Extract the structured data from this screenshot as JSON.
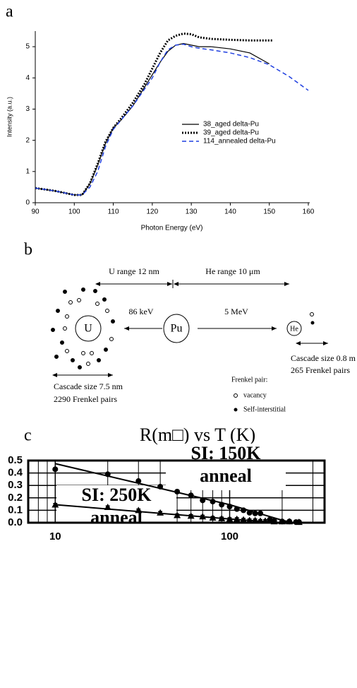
{
  "chart_data": [
    {
      "type": "line",
      "panel_label": "a",
      "xlabel": "Photon Energy (eV)",
      "ylabel": "Intensity (a.u.)",
      "xlim": [
        90,
        160
      ],
      "ylim": [
        0,
        5.5
      ],
      "xticks": [
        90,
        100,
        110,
        120,
        130,
        140,
        150,
        160
      ],
      "yticks": [
        0,
        1,
        2,
        3,
        4,
        5
      ],
      "legend": "center right",
      "series": [
        {
          "name": "38_aged delta-Pu",
          "color": "#000000",
          "style": "solid",
          "x": [
            90,
            95,
            100,
            102,
            104,
            106,
            108,
            110,
            112,
            115,
            118,
            120,
            122,
            124,
            126,
            128,
            130,
            132,
            135,
            140,
            145,
            150
          ],
          "values": [
            0.47,
            0.38,
            0.25,
            0.25,
            0.6,
            1.2,
            1.9,
            2.4,
            2.65,
            3.1,
            3.7,
            4.1,
            4.5,
            4.85,
            5.05,
            5.1,
            5.05,
            5.0,
            5.0,
            4.93,
            4.8,
            4.45
          ]
        },
        {
          "name": "39_aged delta-Pu",
          "color": "#000000",
          "style": "dotted",
          "x": [
            90,
            95,
            100,
            102,
            104,
            106,
            108,
            110,
            112,
            115,
            118,
            120,
            122,
            124,
            126,
            128,
            130,
            132,
            135,
            140,
            145,
            151
          ],
          "values": [
            0.47,
            0.38,
            0.25,
            0.25,
            0.62,
            1.25,
            1.95,
            2.4,
            2.7,
            3.2,
            3.8,
            4.3,
            4.8,
            5.2,
            5.35,
            5.42,
            5.4,
            5.3,
            5.25,
            5.22,
            5.2,
            5.2
          ]
        },
        {
          "name": "114_annealed delta-Pu",
          "color": "#1f3fe0",
          "style": "dashed",
          "x": [
            90,
            95,
            100,
            102,
            104,
            106,
            108,
            110,
            112,
            115,
            120,
            122,
            124,
            126,
            128,
            130,
            132,
            135,
            140,
            145,
            150,
            155,
            160
          ],
          "values": [
            0.47,
            0.38,
            0.25,
            0.25,
            0.5,
            1.0,
            1.8,
            2.35,
            2.65,
            3.1,
            4.0,
            4.5,
            4.9,
            5.05,
            5.08,
            5.0,
            4.95,
            4.9,
            4.8,
            4.65,
            4.42,
            4.05,
            3.6
          ]
        }
      ]
    },
    {
      "type": "scatter",
      "panel_label": "c",
      "title": "R(m□) vs T (K)",
      "log_x": true,
      "grid": true,
      "xlim": [
        7,
        350
      ],
      "ylim": [
        0,
        0.5
      ],
      "xticks": [
        10,
        100
      ],
      "yticks": [
        {
          "value": 0,
          "label": "0.0"
        },
        0.1,
        0.2,
        0.3,
        0.4,
        0.5
      ],
      "series": [
        {
          "marker": "circle",
          "color": "#000000",
          "x": [
            10,
            20,
            30,
            40,
            50,
            60,
            70,
            80,
            90,
            100,
            110,
            120,
            130,
            140,
            150,
            170,
            180,
            200,
            220,
            240,
            250
          ],
          "values": [
            0.43,
            0.39,
            0.335,
            0.29,
            0.25,
            0.22,
            0.18,
            0.17,
            0.145,
            0.13,
            0.11,
            0.1,
            0.08,
            0.075,
            0.075,
            0.025,
            0.015,
            0.01,
            0.01,
            0.005,
            0.005
          ],
          "errors": [
            0.01,
            0.01,
            0.01,
            0.01,
            0.01,
            0.01,
            0.01,
            0.01,
            0.01,
            0.01,
            0.01,
            0.01,
            0.01,
            0.01,
            0.01,
            0.01,
            0.01,
            0.01,
            0.01,
            0.01,
            0.01
          ]
        },
        {
          "marker": "triangle",
          "color": "#000000",
          "x": [
            10,
            20,
            30,
            40,
            50,
            60,
            70,
            80,
            90,
            100,
            110,
            120,
            130,
            140,
            150,
            160,
            170,
            180,
            200,
            220,
            250
          ],
          "values": [
            0.145,
            0.125,
            0.1,
            0.08,
            0.06,
            0.055,
            0.05,
            0.04,
            0.035,
            0.03,
            0.03,
            0.025,
            0.02,
            0.02,
            0.015,
            0.015,
            0.015,
            0.01,
            0.01,
            0.01,
            0.005
          ],
          "errors": [
            0.01,
            0.01,
            0.01,
            0.01,
            0.01,
            0.01,
            0.01,
            0.01,
            0.01,
            0.01,
            0.01,
            0.01,
            0.01,
            0.01,
            0.01,
            0.01,
            0.01,
            0.01,
            0.01,
            0.01,
            0.01
          ]
        }
      ],
      "fits": [
        {
          "x": [
            10,
            100,
            160,
            200,
            230
          ],
          "values": [
            0.475,
            0.145,
            0.06,
            0.02,
            0.0
          ]
        },
        {
          "x": [
            10,
            100,
            200,
            290
          ],
          "values": [
            0.145,
            0.03,
            0.0,
            0.0
          ]
        }
      ],
      "annotations": [
        {
          "lines": [
            "SI: 150K",
            "anneal"
          ]
        },
        {
          "lines": [
            "SI: 250K",
            "anneal"
          ]
        }
      ]
    }
  ],
  "diagram": {
    "panel_label": "b",
    "u_range": "U range 12 nm",
    "he_range": "He range 10 μm",
    "u_energy": "86 keV",
    "he_energy": "5 MeV",
    "u": "U",
    "pu": "Pu",
    "he": "He",
    "u_cascade": [
      "Cascade size 7.5 nm",
      "2290 Frenkel pairs"
    ],
    "he_cascade": [
      "Cascade size 0.8 m",
      "265 Frenkel pairs"
    ],
    "frenkel_title": "Frenkel pair:",
    "vacancy": "vacancy",
    "interstitial": "Self-interstitial"
  }
}
